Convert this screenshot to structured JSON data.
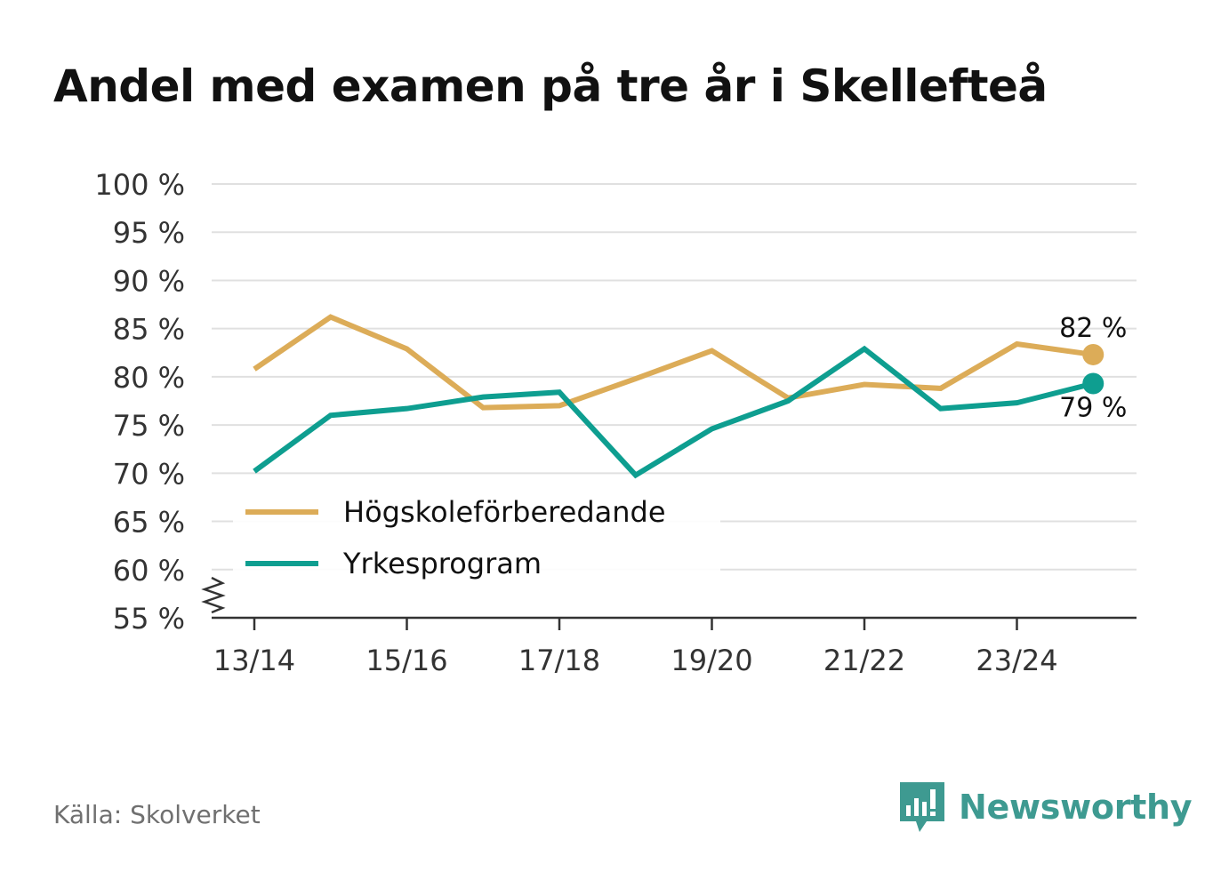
{
  "title": "Andel med examen på tre år i Skellefteå",
  "source": "Källa: Skolverket",
  "brand": {
    "name": "Newsworthy",
    "icon": "newsworthy-logo-icon",
    "color": "#3e9a91"
  },
  "chart_data": {
    "type": "line",
    "title": "Andel med examen på tre år i Skellefteå",
    "xlabel": "",
    "ylabel": "",
    "ylim": [
      55,
      100
    ],
    "y_axis_break": true,
    "yticks": [
      "100 %",
      "95 %",
      "90 %",
      "85 %",
      "80 %",
      "75 %",
      "70 %",
      "65 %",
      "60 %",
      "55 %"
    ],
    "ytick_values": [
      100,
      95,
      90,
      85,
      80,
      75,
      70,
      65,
      60,
      55
    ],
    "categories": [
      "13/14",
      "14/15",
      "15/16",
      "16/17",
      "17/18",
      "18/19",
      "19/20",
      "20/21",
      "21/22",
      "22/23",
      "23/24",
      "24/25"
    ],
    "xtick_labels": [
      "13/14",
      "15/16",
      "17/18",
      "19/20",
      "21/22",
      "23/24"
    ],
    "legend_position": "bottom-left",
    "grid": true,
    "series": [
      {
        "name": "Högskoleförberedande",
        "color": "#dcac58",
        "values": [
          80.8,
          86.2,
          82.9,
          76.8,
          77.0,
          79.8,
          82.7,
          77.8,
          79.2,
          78.8,
          83.4,
          82.3
        ],
        "end_label": "82 %"
      },
      {
        "name": "Yrkesprogram",
        "color": "#0e9e90",
        "values": [
          70.2,
          76.0,
          76.7,
          77.9,
          78.4,
          69.8,
          74.6,
          77.5,
          82.9,
          76.7,
          77.3,
          79.3
        ],
        "end_label": "79 %"
      }
    ]
  }
}
